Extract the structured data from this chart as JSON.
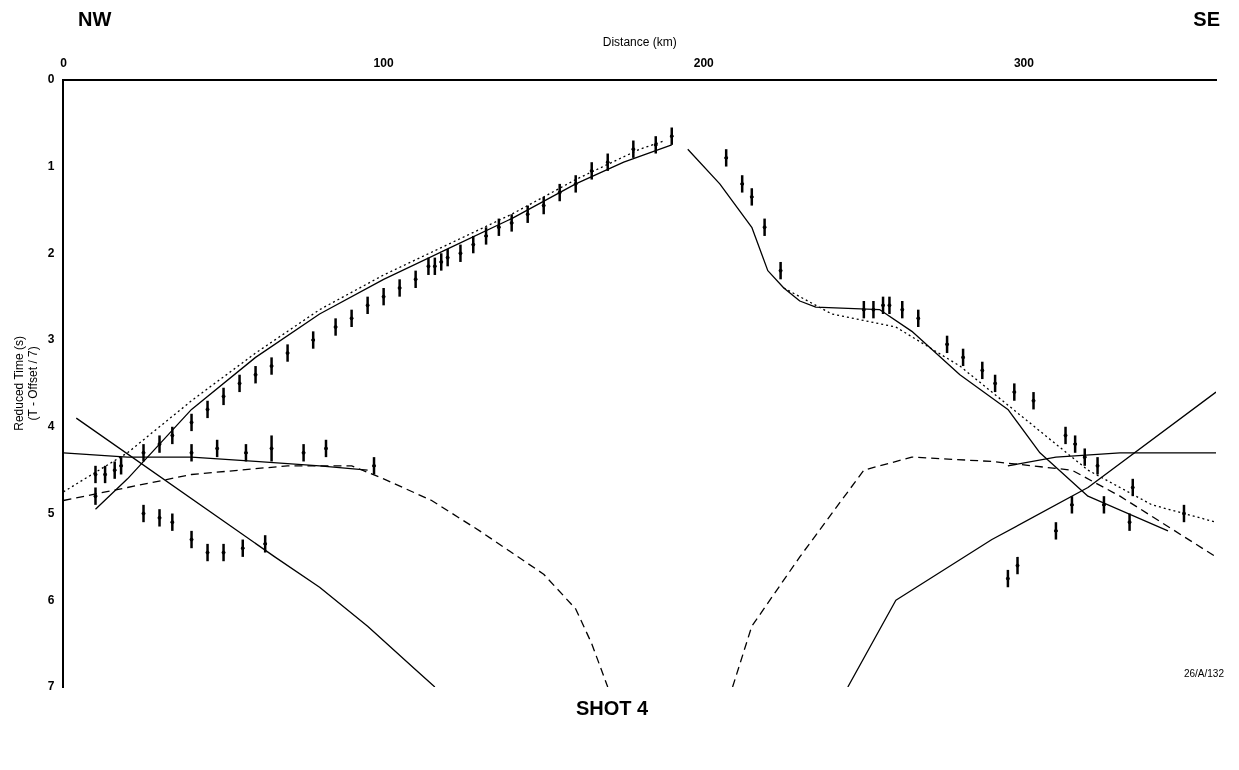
{
  "chart_data": {
    "type": "line",
    "title": "SHOT 4",
    "xlabel": "Distance (km)",
    "ylabel": "Reduced Time (s)\n(T - Offset / 7)",
    "annotations": [
      "NW",
      "SE",
      "26/A/132"
    ],
    "xlim": [
      0,
      360
    ],
    "xticks": [
      0,
      100,
      200,
      300
    ],
    "ylim": [
      7,
      0
    ],
    "yticks": [
      0,
      1,
      2,
      3,
      4,
      5,
      6,
      7
    ],
    "grid": false,
    "legend": false,
    "series": [
      {
        "type": "line",
        "color": "#000000",
        "line_style": "solid",
        "x": [
          10,
          20,
          40,
          60,
          80,
          100,
          120,
          140,
          160,
          175,
          190
        ],
        "values": [
          4.95,
          4.6,
          3.8,
          3.2,
          2.7,
          2.3,
          1.95,
          1.6,
          1.2,
          0.95,
          0.75
        ]
      },
      {
        "type": "line",
        "color": "#000000",
        "line_style": "dotted",
        "x": [
          0,
          20,
          40,
          60,
          80,
          100,
          120,
          140,
          160,
          180,
          188
        ],
        "values": [
          4.75,
          4.3,
          3.7,
          3.15,
          2.65,
          2.25,
          1.9,
          1.55,
          1.15,
          0.8,
          0.7
        ]
      },
      {
        "type": "line",
        "color": "#000000",
        "line_style": "solid",
        "x": [
          195,
          205,
          215,
          220,
          225,
          230,
          235,
          255,
          265,
          280,
          295,
          305,
          320,
          345
        ],
        "values": [
          0.8,
          1.2,
          1.7,
          2.2,
          2.4,
          2.55,
          2.62,
          2.65,
          2.9,
          3.4,
          3.8,
          4.3,
          4.8,
          5.2
        ]
      },
      {
        "type": "line",
        "color": "#000000",
        "line_style": "dotted",
        "x": [
          225,
          240,
          260,
          280,
          300,
          320,
          340,
          360
        ],
        "values": [
          2.4,
          2.7,
          2.85,
          3.3,
          3.9,
          4.5,
          4.9,
          5.1
        ]
      },
      {
        "type": "line",
        "color": "#000000",
        "line_style": "solid",
        "x": [
          4,
          66,
          80,
          95,
          110,
          116
        ],
        "values": [
          3.9,
          5.5,
          5.85,
          6.3,
          6.8,
          7
        ]
      },
      {
        "type": "line",
        "color": "#000000",
        "line_style": "solid",
        "x": [
          0,
          20,
          40,
          60,
          80,
          95
        ],
        "values": [
          4.3,
          4.35,
          4.35,
          4.4,
          4.45,
          4.5
        ]
      },
      {
        "type": "line",
        "color": "#000000",
        "line_style": "dashed",
        "x": [
          0,
          20,
          40,
          70,
          90,
          100,
          115,
          130,
          150,
          160,
          165,
          170
        ],
        "values": [
          4.85,
          4.7,
          4.55,
          4.45,
          4.45,
          4.6,
          4.85,
          5.2,
          5.7,
          6.1,
          6.5,
          7
        ]
      },
      {
        "type": "line",
        "color": "#000000",
        "line_style": "dashed",
        "x": [
          209,
          215,
          230,
          250,
          265,
          290,
          315,
          330,
          360
        ],
        "values": [
          7,
          6.3,
          5.5,
          4.5,
          4.35,
          4.4,
          4.5,
          4.8,
          5.5
        ]
      },
      {
        "type": "line",
        "color": "#000000",
        "line_style": "solid",
        "x": [
          295,
          310,
          330,
          360
        ],
        "values": [
          4.45,
          4.35,
          4.3,
          4.3
        ]
      },
      {
        "type": "line",
        "color": "#000000",
        "line_style": "solid",
        "x": [
          245,
          260,
          290,
          320,
          360
        ],
        "values": [
          7,
          6,
          5.3,
          4.7,
          3.6
        ]
      },
      {
        "type": "scatter",
        "color": "#000000",
        "marker": "circle",
        "x": [
          10,
          13,
          16,
          18,
          25,
          30,
          34,
          40,
          45,
          50,
          55,
          60,
          65,
          70,
          78,
          85,
          90,
          95,
          100,
          105,
          110,
          114,
          116,
          118,
          120,
          124,
          128,
          132,
          136,
          140,
          145,
          150,
          155,
          160,
          165,
          170,
          178,
          185,
          190,
          207,
          212,
          215,
          219,
          224,
          250,
          253,
          256,
          258,
          262,
          267,
          276,
          281,
          287,
          291,
          297,
          303,
          313,
          316,
          319,
          323,
          325,
          334,
          350,
          10,
          25,
          30,
          34,
          40,
          45,
          50,
          56,
          63,
          40,
          48,
          57,
          65,
          75,
          82,
          97,
          295,
          298,
          310,
          315,
          333
        ],
        "values": [
          4.55,
          4.55,
          4.5,
          4.45,
          4.3,
          4.2,
          4.1,
          3.95,
          3.8,
          3.65,
          3.5,
          3.4,
          3.3,
          3.15,
          3.0,
          2.85,
          2.75,
          2.6,
          2.5,
          2.4,
          2.3,
          2.15,
          2.15,
          2.1,
          2.05,
          2.0,
          1.9,
          1.8,
          1.7,
          1.65,
          1.55,
          1.45,
          1.3,
          1.2,
          1.05,
          0.95,
          0.8,
          0.75,
          0.65,
          0.9,
          1.2,
          1.35,
          1.7,
          2.2,
          2.65,
          2.65,
          2.6,
          2.6,
          2.65,
          2.75,
          3.05,
          3.2,
          3.35,
          3.5,
          3.6,
          3.7,
          4.1,
          4.2,
          4.35,
          4.45,
          4.9,
          4.7,
          5.0,
          4.8,
          5.0,
          5.05,
          5.1,
          5.3,
          5.45,
          5.45,
          5.4,
          5.35,
          4.3,
          4.25,
          4.3,
          4.25,
          4.3,
          4.25,
          4.45,
          5.75,
          5.6,
          5.2,
          4.9,
          5.1
        ],
        "errors": [
          0.1,
          0.1,
          0.1,
          0.1,
          0.1,
          0.1,
          0.1,
          0.1,
          0.1,
          0.1,
          0.1,
          0.1,
          0.1,
          0.1,
          0.1,
          0.1,
          0.1,
          0.1,
          0.1,
          0.1,
          0.1,
          0.1,
          0.1,
          0.1,
          0.1,
          0.1,
          0.1,
          0.1,
          0.1,
          0.1,
          0.1,
          0.1,
          0.1,
          0.1,
          0.1,
          0.1,
          0.1,
          0.1,
          0.1,
          0.1,
          0.1,
          0.1,
          0.1,
          0.1,
          0.1,
          0.1,
          0.1,
          0.1,
          0.1,
          0.1,
          0.1,
          0.1,
          0.1,
          0.1,
          0.1,
          0.1,
          0.1,
          0.1,
          0.1,
          0.1,
          0.1,
          0.1,
          0.1,
          0.1,
          0.1,
          0.1,
          0.1,
          0.1,
          0.1,
          0.1,
          0.1,
          0.1,
          0.1,
          0.1,
          0.1,
          0.15,
          0.1,
          0.1,
          0.1,
          0.1,
          0.1,
          0.1,
          0.1,
          0.1
        ]
      }
    ]
  }
}
